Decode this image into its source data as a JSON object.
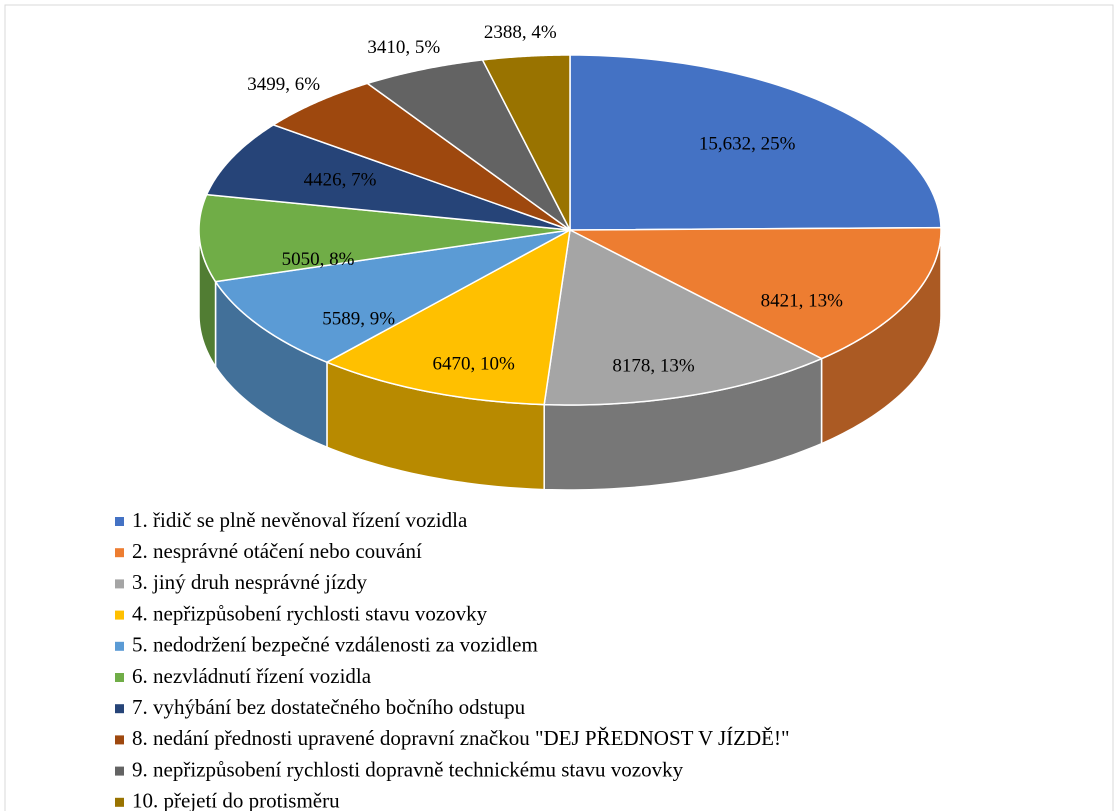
{
  "chart_data": {
    "type": "pie",
    "categories": [
      "1. řidič se plně nevěnoval řízení vozidla",
      "2. nesprávné otáčení nebo couvání",
      "3. jiný druh nesprávné jízdy",
      "4. nepřizpůsobení rychlosti stavu vozovky",
      "5. nedodržení bezpečné vzdálenosti za vozidlem",
      "6. nezvládnutí řízení vozidla",
      "7. vyhýbání bez dostatečného bočního odstupu",
      "8. nedání přednosti upravené dopravní značkou \"DEJ PŘEDNOST V JÍZDĚ!\"",
      "9. nepřizpůsobení rychlosti dopravně technickému stavu vozovky",
      "10. přejetí do protisměru"
    ],
    "values": [
      15632,
      8421,
      8178,
      6470,
      5589,
      5050,
      4426,
      3499,
      3410,
      2388
    ],
    "value_labels": [
      "15,632, 25%",
      "8421, 13%",
      "8178, 13%",
      "6470, 10%",
      "5589, 9%",
      "5050, 8%",
      "4426, 7%",
      "3499, 6%",
      "3410, 5%",
      "2388, 4%"
    ],
    "colors": [
      "#4472c4",
      "#ed7d31",
      "#a5a5a5",
      "#ffc000",
      "#5b9bd5",
      "#70ad47",
      "#264478",
      "#9e480e",
      "#636363",
      "#997300"
    ],
    "legend": "bottom"
  }
}
